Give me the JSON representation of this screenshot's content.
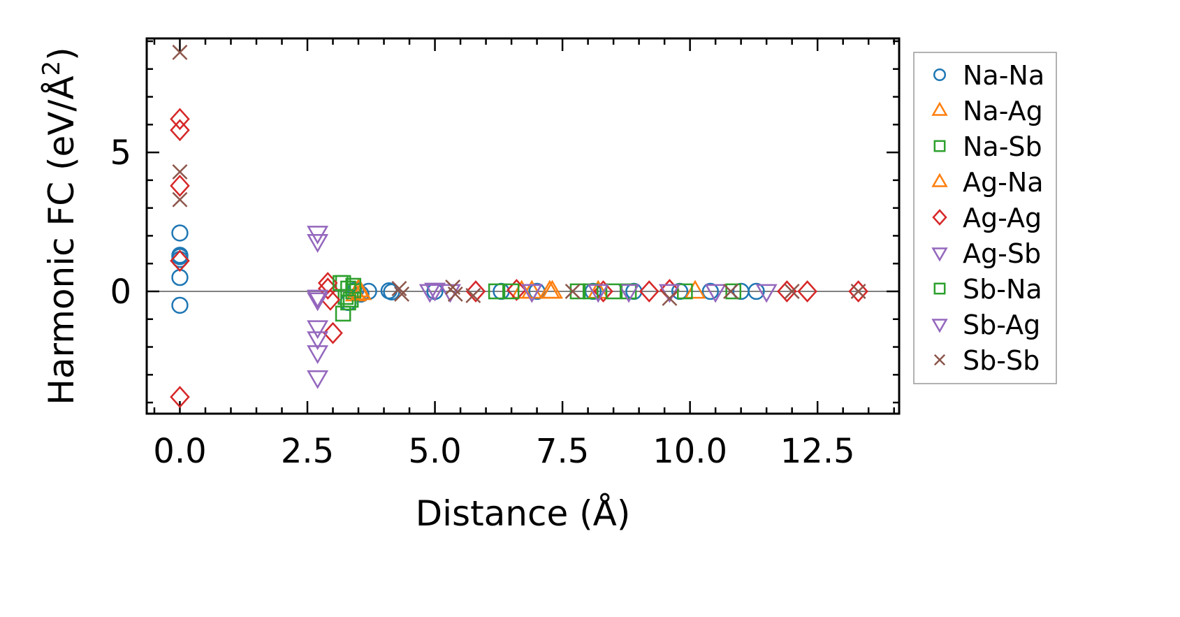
{
  "chart_data": {
    "type": "scatter",
    "xlabel": "Distance (Å)",
    "ylabel_main": "Harmonic FC (eV/Å",
    "ylabel_sup": "2",
    "ylabel_close": ")",
    "xlim": [
      -0.65,
      14.1
    ],
    "ylim": [
      -4.4,
      9.1
    ],
    "xticks": [
      0.0,
      2.5,
      5.0,
      7.5,
      10.0,
      12.5
    ],
    "xtick_labels": [
      "0.0",
      "2.5",
      "5.0",
      "7.5",
      "10.0",
      "12.5"
    ],
    "yticks": [
      0,
      5
    ],
    "ytick_labels": [
      "0",
      "5"
    ],
    "legend_position": "outside-right",
    "series": [
      {
        "name": "Na-Na",
        "marker": "circle",
        "color": "#1f77b4",
        "x": [
          0,
          0,
          0,
          0,
          0,
          0,
          3.3,
          3.45,
          3.55,
          3.7,
          4.1,
          4.15,
          5.0,
          6.3,
          7.0,
          8.1,
          8.9,
          9.8,
          10.4,
          11.0,
          11.3
        ],
        "y": [
          2.1,
          1.3,
          1.15,
          0.5,
          -0.5,
          1.25,
          -0.4,
          0.05,
          -0.1,
          0.0,
          0.02,
          -0.02,
          0.0,
          0.0,
          0.0,
          0.0,
          0.0,
          0.0,
          0.0,
          0.0,
          0.0
        ]
      },
      {
        "name": "Na-Ag",
        "marker": "triangle-up",
        "color": "#ff7f0e",
        "x": [
          3.45,
          3.5,
          6.9,
          7.3,
          8.2,
          10.1
        ],
        "y": [
          -0.1,
          0.05,
          0.0,
          0.0,
          0.0,
          0.0
        ]
      },
      {
        "name": "Na-Sb",
        "marker": "square",
        "color": "#2ca02c",
        "x": [
          3.2,
          3.25,
          3.3,
          3.35,
          3.4,
          6.2,
          7.8,
          8.8
        ],
        "y": [
          0.3,
          -0.2,
          0.1,
          -0.3,
          0.0,
          0.0,
          0.0,
          0.0
        ]
      },
      {
        "name": "Ag-Na",
        "marker": "triangle-up",
        "color": "#ff7f0e",
        "x": [
          3.55,
          6.7,
          7.25
        ],
        "y": [
          -0.05,
          0.0,
          0.0
        ]
      },
      {
        "name": "Ag-Ag",
        "marker": "diamond",
        "color": "#d62728",
        "x": [
          0,
          0,
          0,
          0,
          0,
          2.9,
          2.9,
          2.95,
          3.0,
          5.8,
          6.6,
          8.3,
          9.2,
          9.6,
          11.9,
          12.3,
          13.3
        ],
        "y": [
          6.2,
          5.8,
          3.8,
          1.1,
          -3.8,
          0.3,
          0.1,
          -0.3,
          -1.5,
          0.0,
          0.05,
          0.0,
          0.0,
          0.05,
          0.0,
          0.0,
          0.0
        ]
      },
      {
        "name": "Ag-Sb",
        "marker": "triangle-down",
        "color": "#9467bd",
        "x": [
          2.7,
          2.7,
          2.7,
          2.7,
          2.7,
          2.7,
          5.0,
          6.9,
          8.8,
          10.5
        ],
        "y": [
          2.1,
          1.8,
          -0.2,
          -1.3,
          -2.2,
          -3.1,
          0.05,
          0.0,
          0.0,
          0.0
        ]
      },
      {
        "name": "Sb-Na",
        "marker": "square",
        "color": "#2ca02c",
        "x": [
          3.15,
          3.2,
          3.3,
          3.4,
          6.5,
          8.05,
          8.5,
          9.9,
          10.85
        ],
        "y": [
          0.3,
          -0.8,
          -0.4,
          0.2,
          0.0,
          0.0,
          0.0,
          0.0,
          0.0
        ]
      },
      {
        "name": "Sb-Ag",
        "marker": "triangle-down",
        "color": "#9467bd",
        "x": [
          2.7,
          2.7,
          4.9,
          5.3,
          6.9,
          8.2,
          9.6,
          11.5
        ],
        "y": [
          -1.7,
          -0.3,
          0.0,
          0.0,
          0.0,
          0.0,
          0.0,
          0.0
        ]
      },
      {
        "name": "Sb-Sb",
        "marker": "x",
        "color": "#8c564b",
        "x": [
          0,
          0,
          0,
          4.3,
          4.35,
          5.35,
          5.4,
          5.75,
          7.7,
          9.6,
          10.8,
          12.0,
          13.3
        ],
        "y": [
          8.6,
          4.3,
          3.3,
          0.1,
          -0.1,
          0.15,
          -0.1,
          -0.15,
          0.0,
          -0.25,
          0.0,
          0.0,
          0.0
        ]
      }
    ]
  }
}
